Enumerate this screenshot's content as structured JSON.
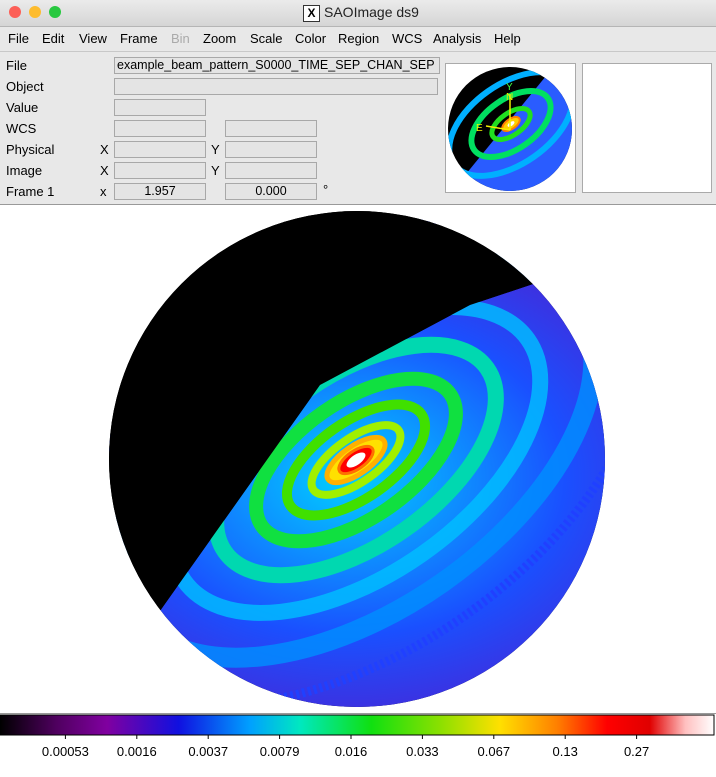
{
  "window": {
    "title": "SAOImage ds9"
  },
  "menu": [
    "File",
    "Edit",
    "View",
    "Frame",
    "Bin",
    "Zoom",
    "Scale",
    "Color",
    "Region",
    "WCS",
    "Analysis",
    "Help"
  ],
  "info": {
    "file": {
      "label": "File",
      "value": "example_beam_pattern_S0000_TIME_SEP_CHAN_SEP"
    },
    "object": {
      "label": "Object"
    },
    "value": {
      "label": "Value"
    },
    "wcs": {
      "label": "WCS"
    },
    "physical": {
      "label": "Physical",
      "x": "X",
      "y": "Y"
    },
    "image": {
      "label": "Image",
      "x": "X",
      "y": "Y"
    },
    "frame": {
      "label": "Frame 1",
      "x": "x",
      "x_value": "1.957",
      "y_value": "0.000",
      "unit": "°"
    }
  },
  "panner": {
    "compass": [
      "Y",
      "N",
      "E"
    ]
  },
  "colorbar": {
    "labels": [
      "0.00053",
      "0.0016",
      "0.0037",
      "0.0079",
      "0.016",
      "0.033",
      "0.067",
      "0.13",
      "0.27"
    ]
  }
}
